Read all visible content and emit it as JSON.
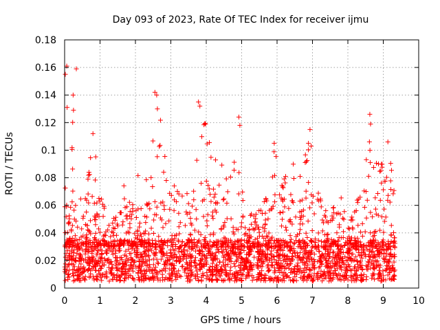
{
  "chart_data": {
    "type": "scatter",
    "title": "Day 093 of 2023, Rate Of TEC Index for receiver ijmu",
    "xlabel": "GPS time / hours",
    "ylabel": "ROTI / TECUs",
    "xlim": [
      0,
      10
    ],
    "ylim": [
      0,
      0.18
    ],
    "xticks": [
      0,
      1,
      2,
      3,
      4,
      5,
      6,
      7,
      8,
      9,
      10
    ],
    "yticks": [
      0,
      0.02,
      0.04,
      0.06,
      0.08,
      0.1,
      0.12,
      0.14,
      0.16,
      0.18
    ],
    "ytick_labels": [
      "0",
      "0.02",
      "0.04",
      "0.06",
      "0.08",
      "0.1",
      "0.12",
      "0.14",
      "0.16",
      "0.18"
    ],
    "grid": true,
    "marker": "+",
    "color": "#ff0000",
    "data_x_range": [
      0,
      9.33
    ],
    "baseline_band": [
      0.005,
      0.035
    ],
    "notable_points": [
      {
        "x": 0.02,
        "y": 0.155
      },
      {
        "x": 0.06,
        "y": 0.161
      },
      {
        "x": 0.33,
        "y": 0.159
      },
      {
        "x": 0.24,
        "y": 0.14
      },
      {
        "x": 0.25,
        "y": 0.129
      },
      {
        "x": 0.07,
        "y": 0.131
      },
      {
        "x": 0.8,
        "y": 0.112
      },
      {
        "x": 2.55,
        "y": 0.142
      },
      {
        "x": 2.6,
        "y": 0.14
      },
      {
        "x": 2.62,
        "y": 0.13
      },
      {
        "x": 3.78,
        "y": 0.135
      },
      {
        "x": 3.82,
        "y": 0.132
      },
      {
        "x": 3.98,
        "y": 0.119
      },
      {
        "x": 4.92,
        "y": 0.124
      },
      {
        "x": 4.95,
        "y": 0.118
      },
      {
        "x": 5.92,
        "y": 0.105
      },
      {
        "x": 6.93,
        "y": 0.115
      },
      {
        "x": 8.62,
        "y": 0.126
      },
      {
        "x": 8.64,
        "y": 0.119
      },
      {
        "x": 9.13,
        "y": 0.106
      }
    ],
    "envelope": [
      [
        0.0,
        0.1
      ],
      [
        0.2,
        0.13
      ],
      [
        0.3,
        0.1
      ],
      [
        0.4,
        0.07
      ],
      [
        0.6,
        0.07
      ],
      [
        0.8,
        0.11
      ],
      [
        1.0,
        0.085
      ],
      [
        1.2,
        0.05
      ],
      [
        1.5,
        0.06
      ],
      [
        1.7,
        0.085
      ],
      [
        1.9,
        0.06
      ],
      [
        2.1,
        0.09
      ],
      [
        2.3,
        0.095
      ],
      [
        2.55,
        0.142
      ],
      [
        2.75,
        0.12
      ],
      [
        2.9,
        0.075
      ],
      [
        3.1,
        0.085
      ],
      [
        3.3,
        0.09
      ],
      [
        3.5,
        0.065
      ],
      [
        3.7,
        0.1
      ],
      [
        3.8,
        0.135
      ],
      [
        4.0,
        0.12
      ],
      [
        4.2,
        0.1
      ],
      [
        4.4,
        0.1
      ],
      [
        4.6,
        0.085
      ],
      [
        4.8,
        0.1
      ],
      [
        4.95,
        0.124
      ],
      [
        5.1,
        0.065
      ],
      [
        5.3,
        0.06
      ],
      [
        5.5,
        0.06
      ],
      [
        5.75,
        0.075
      ],
      [
        5.95,
        0.105
      ],
      [
        6.15,
        0.085
      ],
      [
        6.4,
        0.1
      ],
      [
        6.6,
        0.08
      ],
      [
        6.8,
        0.1
      ],
      [
        6.95,
        0.115
      ],
      [
        7.1,
        0.075
      ],
      [
        7.3,
        0.06
      ],
      [
        7.5,
        0.06
      ],
      [
        7.75,
        0.07
      ],
      [
        8.0,
        0.055
      ],
      [
        8.2,
        0.06
      ],
      [
        8.4,
        0.09
      ],
      [
        8.55,
        0.1
      ],
      [
        8.65,
        0.126
      ],
      [
        8.85,
        0.09
      ],
      [
        9.05,
        0.1
      ],
      [
        9.15,
        0.106
      ],
      [
        9.33,
        0.08
      ]
    ]
  }
}
